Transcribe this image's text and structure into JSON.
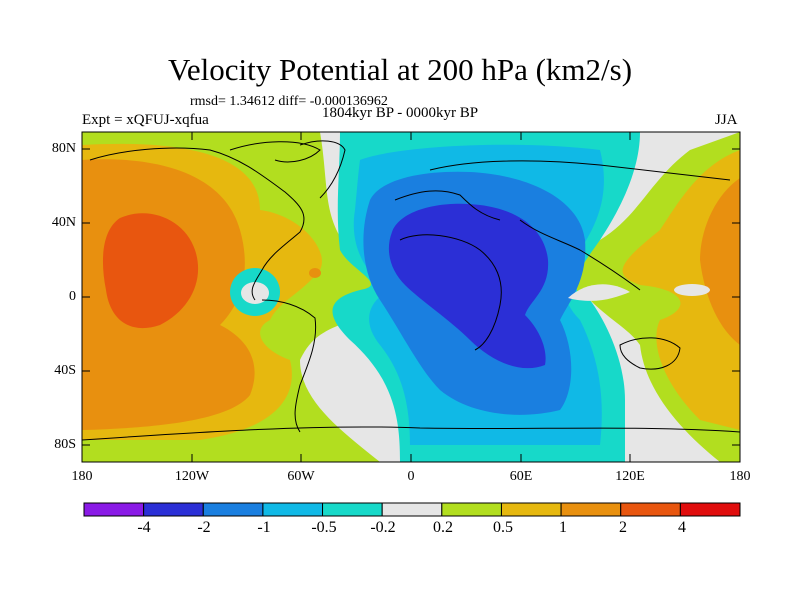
{
  "title": "Velocity Potential at 200 hPa (km2/s)",
  "stats_text": "rmsd= 1.34612 diff= -0.000136962",
  "period_text": "1804kyr BP - 0000kyr BP",
  "experiment_text": "Expt = xQFUJ-xqfua",
  "season_text": "JJA",
  "lat_labels": [
    "80N",
    "40N",
    "0",
    "40S",
    "80S"
  ],
  "lon_labels": [
    "180",
    "120W",
    "60W",
    "0",
    "60E",
    "120E",
    "180"
  ],
  "colorbar": {
    "labels": [
      "-4",
      "-2",
      "-1",
      "-0.5",
      "-0.2",
      "0.2",
      "0.5",
      "1",
      "2",
      "4"
    ],
    "colors": [
      "#8a1ae6",
      "#2b2fd6",
      "#1a7fe0",
      "#10b9e6",
      "#17d9c9",
      "#e6e6e6",
      "#b2de1f",
      "#e6b80f",
      "#e8900f",
      "#e8560f",
      "#e00d0d"
    ]
  }
}
